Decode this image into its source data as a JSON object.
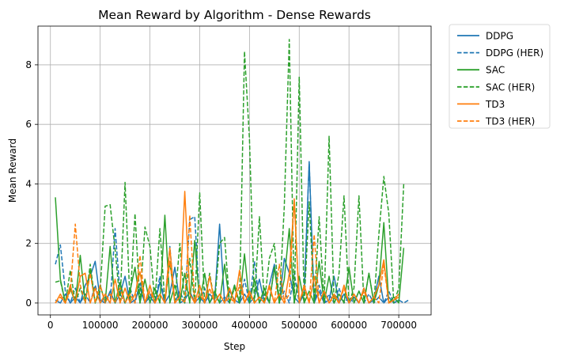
{
  "chart_data": {
    "type": "line",
    "title": "Mean Reward by Algorithm - Dense Rewards",
    "xlabel": "Step",
    "ylabel": "Mean Reward",
    "xlim": [
      -25000,
      765000
    ],
    "ylim": [
      -0.4,
      9.3
    ],
    "xticks": [
      0,
      100000,
      200000,
      300000,
      400000,
      500000,
      600000,
      700000
    ],
    "xtick_labels": [
      "0",
      "100000",
      "200000",
      "300000",
      "400000",
      "500000",
      "600000",
      "700000"
    ],
    "yticks": [
      0,
      2,
      4,
      6,
      8
    ],
    "ytick_labels": [
      "0",
      "2",
      "4",
      "6",
      "8"
    ],
    "grid": true,
    "legend_placement": "outside-upper-right",
    "series": [
      {
        "name": "DDPG",
        "color": "#1f77b4",
        "dash": false,
        "x": [
          10000,
          20000,
          30000,
          40000,
          50000,
          60000,
          70000,
          80000,
          90000,
          100000,
          110000,
          120000,
          130000,
          140000,
          150000,
          160000,
          170000,
          180000,
          190000,
          200000,
          210000,
          220000,
          230000,
          240000,
          250000,
          260000,
          270000,
          280000,
          290000,
          300000,
          310000,
          320000,
          330000,
          340000,
          350000,
          360000,
          370000,
          380000,
          390000,
          400000,
          410000,
          420000,
          430000,
          440000,
          450000,
          460000,
          470000,
          480000,
          490000,
          500000,
          510000,
          520000,
          530000,
          540000,
          550000,
          560000,
          570000,
          580000,
          590000,
          600000,
          610000,
          620000,
          630000,
          640000,
          650000,
          660000,
          670000,
          680000,
          690000,
          700000
        ],
        "y": [
          0.1,
          0.0,
          0.3,
          0.0,
          0.2,
          0.0,
          0.6,
          0.9,
          1.4,
          0.1,
          0.0,
          0.4,
          0.0,
          0.3,
          0.9,
          0.0,
          0.1,
          0.5,
          0.0,
          0.2,
          0.0,
          0.7,
          0.0,
          0.3,
          1.2,
          0.0,
          0.1,
          0.4,
          0.0,
          0.2,
          0.0,
          0.3,
          0.1,
          2.65,
          0.0,
          0.4,
          0.1,
          0.0,
          0.3,
          0.0,
          0.2,
          0.8,
          0.0,
          0.6,
          1.3,
          0.0,
          1.5,
          1.0,
          0.2,
          0.0,
          0.3,
          4.75,
          0.0,
          0.4,
          0.0,
          0.1,
          0.9,
          0.0,
          0.3,
          0.0,
          0.2,
          0.0,
          0.5,
          0.0,
          0.1,
          0.9,
          0.0,
          0.2,
          0.0,
          0.1
        ]
      },
      {
        "name": "DDPG (HER)",
        "color": "#1f77b4",
        "dash": true,
        "x": [
          10000,
          20000,
          30000,
          40000,
          50000,
          60000,
          70000,
          80000,
          90000,
          100000,
          110000,
          120000,
          130000,
          140000,
          150000,
          160000,
          170000,
          180000,
          190000,
          200000,
          210000,
          220000,
          230000,
          240000,
          250000,
          260000,
          270000,
          280000,
          290000,
          300000,
          310000,
          320000,
          330000,
          340000,
          350000,
          360000,
          370000,
          380000,
          390000,
          400000,
          410000,
          420000,
          430000,
          440000,
          450000,
          460000,
          470000,
          480000,
          490000,
          500000,
          510000,
          520000,
          530000,
          540000,
          550000,
          560000,
          570000,
          580000,
          590000,
          600000,
          610000,
          620000,
          630000,
          640000,
          650000,
          660000,
          670000,
          680000,
          690000,
          700000,
          710000,
          720000
        ],
        "y": [
          1.3,
          1.95,
          0.4,
          0.0,
          0.5,
          0.0,
          0.3,
          0.0,
          0.6,
          0.0,
          0.2,
          0.0,
          2.5,
          0.3,
          0.0,
          0.5,
          0.0,
          0.7,
          0.0,
          0.3,
          0.0,
          0.9,
          0.0,
          1.9,
          0.0,
          0.4,
          0.0,
          2.8,
          2.9,
          0.0,
          0.5,
          0.0,
          0.3,
          0.0,
          0.2,
          0.0,
          0.6,
          0.0,
          0.8,
          0.0,
          1.4,
          0.0,
          0.3,
          0.0,
          1.2,
          0.0,
          0.4,
          0.0,
          1.0,
          0.0,
          0.4,
          4.7,
          0.0,
          0.6,
          0.0,
          0.3,
          0.0,
          0.5,
          0.0,
          0.2,
          0.0,
          0.4,
          0.0,
          0.3,
          0.0,
          0.2,
          0.0,
          0.4,
          0.0,
          0.1,
          0.0,
          0.1
        ]
      },
      {
        "name": "SAC",
        "color": "#2ca02c",
        "dash": false,
        "x": [
          10000,
          20000,
          30000,
          40000,
          50000,
          60000,
          70000,
          80000,
          90000,
          100000,
          110000,
          120000,
          130000,
          140000,
          150000,
          160000,
          170000,
          180000,
          190000,
          200000,
          210000,
          220000,
          230000,
          240000,
          250000,
          260000,
          270000,
          280000,
          290000,
          300000,
          310000,
          320000,
          330000,
          340000,
          350000,
          360000,
          370000,
          380000,
          390000,
          400000,
          410000,
          420000,
          430000,
          440000,
          450000,
          460000,
          470000,
          480000,
          490000,
          500000,
          510000,
          520000,
          530000,
          540000,
          550000,
          560000,
          570000,
          580000,
          590000,
          600000,
          610000,
          620000,
          630000,
          640000,
          650000,
          660000,
          670000,
          680000,
          690000,
          700000,
          710000
        ],
        "y": [
          3.55,
          0.8,
          0.0,
          0.5,
          0.0,
          1.6,
          0.0,
          1.1,
          0.0,
          0.6,
          0.0,
          1.9,
          0.0,
          0.7,
          0.0,
          0.4,
          1.2,
          0.0,
          0.8,
          0.0,
          0.5,
          0.0,
          2.95,
          0.0,
          0.6,
          0.0,
          1.0,
          0.0,
          2.1,
          0.0,
          1.0,
          0.0,
          0.4,
          0.0,
          1.3,
          0.0,
          0.6,
          0.0,
          1.65,
          0.0,
          0.8,
          0.0,
          0.5,
          0.0,
          1.2,
          0.0,
          0.8,
          2.5,
          0.0,
          0.9,
          0.0,
          0.4,
          0.0,
          1.4,
          0.0,
          0.9,
          0.0,
          0.3,
          0.0,
          1.2,
          0.0,
          0.4,
          0.0,
          1.0,
          0.0,
          0.6,
          2.7,
          0.0,
          0.2,
          0.0,
          1.85
        ]
      },
      {
        "name": "SAC (HER)",
        "color": "#2ca02c",
        "dash": true,
        "x": [
          10000,
          20000,
          30000,
          40000,
          50000,
          60000,
          70000,
          80000,
          90000,
          100000,
          110000,
          120000,
          130000,
          140000,
          150000,
          160000,
          170000,
          180000,
          190000,
          200000,
          210000,
          220000,
          230000,
          240000,
          250000,
          260000,
          270000,
          280000,
          290000,
          300000,
          310000,
          320000,
          330000,
          340000,
          350000,
          360000,
          370000,
          380000,
          390000,
          400000,
          410000,
          420000,
          430000,
          440000,
          450000,
          460000,
          470000,
          480000,
          490000,
          500000,
          510000,
          520000,
          530000,
          540000,
          550000,
          560000,
          570000,
          580000,
          590000,
          600000,
          610000,
          620000,
          630000,
          640000,
          650000,
          660000,
          670000,
          680000,
          690000,
          700000,
          710000
        ],
        "y": [
          0.7,
          0.75,
          0.0,
          1.1,
          0.0,
          0.5,
          0.0,
          1.3,
          0.0,
          0.4,
          3.25,
          3.3,
          1.8,
          0.0,
          4.05,
          0.0,
          3.0,
          0.0,
          2.55,
          1.9,
          0.0,
          2.5,
          0.0,
          1.4,
          0.0,
          2.0,
          0.0,
          1.5,
          0.0,
          3.7,
          0.0,
          1.0,
          0.0,
          2.0,
          2.2,
          0.0,
          0.5,
          0.0,
          8.45,
          5.5,
          0.0,
          2.9,
          0.0,
          1.5,
          2.0,
          0.0,
          3.25,
          8.85,
          0.0,
          7.6,
          0.0,
          3.4,
          0.0,
          2.9,
          0.0,
          5.6,
          0.0,
          1.0,
          3.6,
          0.0,
          0.5,
          3.6,
          0.0,
          1.0,
          0.0,
          2.3,
          4.25,
          3.0,
          0.0,
          0.5,
          4.0
        ]
      },
      {
        "name": "TD3",
        "color": "#ff7f0e",
        "dash": false,
        "x": [
          10000,
          20000,
          30000,
          40000,
          50000,
          60000,
          70000,
          80000,
          90000,
          100000,
          110000,
          120000,
          130000,
          140000,
          150000,
          160000,
          170000,
          180000,
          190000,
          200000,
          210000,
          220000,
          230000,
          240000,
          250000,
          260000,
          270000,
          280000,
          290000,
          300000,
          310000,
          320000,
          330000,
          340000,
          350000,
          360000,
          370000,
          380000,
          390000,
          400000,
          410000,
          420000,
          430000,
          440000,
          450000,
          460000,
          470000,
          480000,
          490000,
          500000,
          510000,
          520000,
          530000,
          540000,
          550000,
          560000,
          570000,
          580000,
          590000,
          600000,
          610000,
          620000,
          630000,
          640000,
          650000,
          660000,
          670000,
          680000,
          690000,
          700000
        ],
        "y": [
          0.0,
          0.3,
          0.0,
          0.6,
          0.0,
          0.9,
          1.0,
          0.0,
          0.5,
          0.0,
          0.3,
          0.0,
          0.8,
          0.0,
          0.5,
          0.0,
          0.3,
          1.05,
          0.0,
          0.6,
          0.0,
          0.3,
          0.0,
          1.85,
          0.0,
          0.2,
          3.75,
          0.3,
          0.0,
          0.6,
          0.0,
          0.9,
          0.0,
          0.3,
          0.0,
          0.5,
          0.0,
          1.1,
          0.0,
          0.4,
          0.0,
          0.2,
          0.0,
          0.6,
          0.0,
          0.3,
          0.0,
          1.0,
          3.45,
          0.0,
          0.6,
          0.0,
          0.9,
          0.0,
          0.4,
          0.0,
          0.3,
          0.0,
          0.6,
          0.0,
          0.3,
          0.0,
          0.5,
          0.0,
          0.2,
          0.6,
          1.45,
          0.0,
          0.1,
          0.3
        ]
      },
      {
        "name": "TD3 (HER)",
        "color": "#ff7f0e",
        "dash": true,
        "x": [
          10000,
          20000,
          30000,
          40000,
          50000,
          60000,
          70000,
          80000,
          90000,
          100000,
          110000,
          120000,
          130000,
          140000,
          150000,
          160000,
          170000,
          180000,
          190000,
          200000,
          210000,
          220000,
          230000,
          240000,
          250000,
          260000,
          270000,
          280000,
          290000,
          300000,
          310000,
          320000,
          330000,
          340000,
          350000,
          360000,
          370000,
          380000,
          390000,
          400000,
          410000,
          420000,
          430000,
          440000,
          450000,
          460000,
          470000,
          480000,
          490000,
          500000,
          510000,
          520000,
          530000,
          540000,
          550000,
          560000,
          570000,
          580000,
          590000,
          600000,
          610000,
          620000,
          630000,
          640000,
          650000,
          660000,
          670000,
          680000,
          690000,
          700000
        ],
        "y": [
          0.0,
          0.2,
          0.0,
          0.4,
          2.65,
          0.6,
          0.0,
          1.0,
          0.0,
          0.6,
          0.0,
          0.3,
          0.0,
          0.5,
          0.0,
          0.3,
          0.0,
          1.6,
          0.0,
          0.4,
          0.0,
          0.3,
          0.0,
          1.4,
          0.0,
          0.2,
          0.0,
          2.95,
          0.0,
          0.3,
          0.0,
          0.5,
          0.0,
          0.3,
          0.0,
          0.2,
          0.0,
          0.6,
          0.0,
          0.3,
          0.0,
          0.2,
          0.0,
          0.5,
          0.0,
          1.3,
          0.0,
          0.3,
          3.5,
          0.0,
          0.5,
          0.0,
          2.3,
          0.0,
          0.4,
          0.0,
          0.2,
          0.0,
          0.5,
          0.0,
          0.3,
          0.0,
          0.4,
          0.0,
          0.2,
          0.0,
          1.3,
          0.0,
          0.1,
          0.2
        ]
      }
    ]
  }
}
